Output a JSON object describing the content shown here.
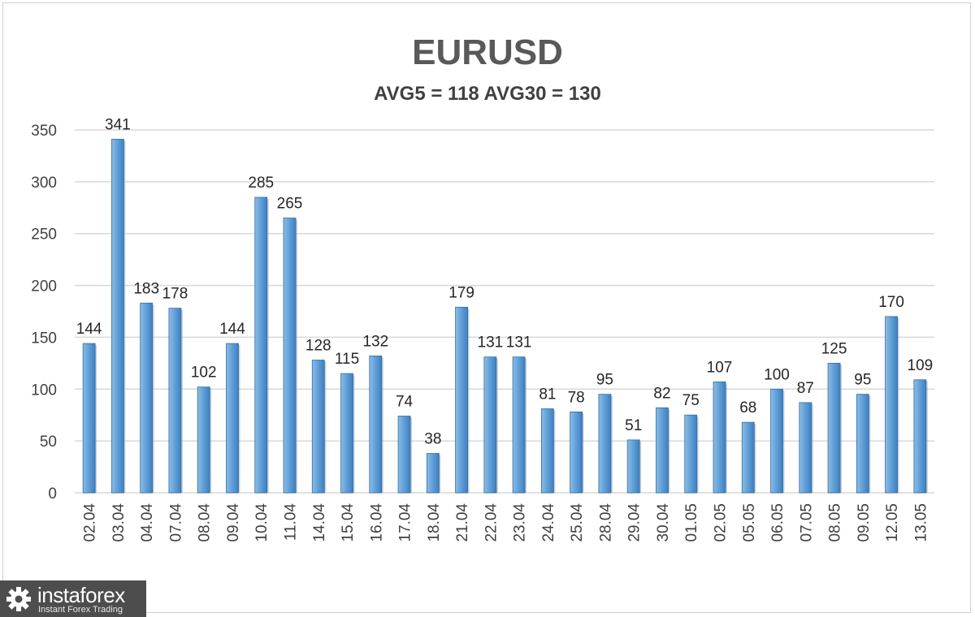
{
  "chart_data": {
    "type": "bar",
    "title": "EURUSD",
    "subtitle": "AVG5 = 118 AVG30 = 130",
    "xlabel": "",
    "ylabel": "",
    "ylim": [
      0,
      350
    ],
    "yticks": [
      0,
      50,
      100,
      150,
      200,
      250,
      300,
      350
    ],
    "grid": true,
    "bar_color": "#5b9bd5",
    "categories": [
      "02.04",
      "03.04",
      "04.04",
      "07.04",
      "08.04",
      "09.04",
      "10.04",
      "11.04",
      "14.04",
      "15.04",
      "16.04",
      "17.04",
      "18.04",
      "21.04",
      "22.04",
      "23.04",
      "24.04",
      "25.04",
      "28.04",
      "29.04",
      "30.04",
      "01.05",
      "02.05",
      "05.05",
      "06.05",
      "07.05",
      "08.05",
      "09.05",
      "12.05",
      "13.05"
    ],
    "values": [
      144,
      341,
      183,
      178,
      102,
      144,
      285,
      265,
      128,
      115,
      132,
      74,
      38,
      179,
      131,
      131,
      81,
      78,
      95,
      51,
      82,
      75,
      107,
      68,
      100,
      87,
      125,
      95,
      170,
      109
    ]
  },
  "logo": {
    "name": "instaforex",
    "tagline": "Instant Forex Trading"
  }
}
